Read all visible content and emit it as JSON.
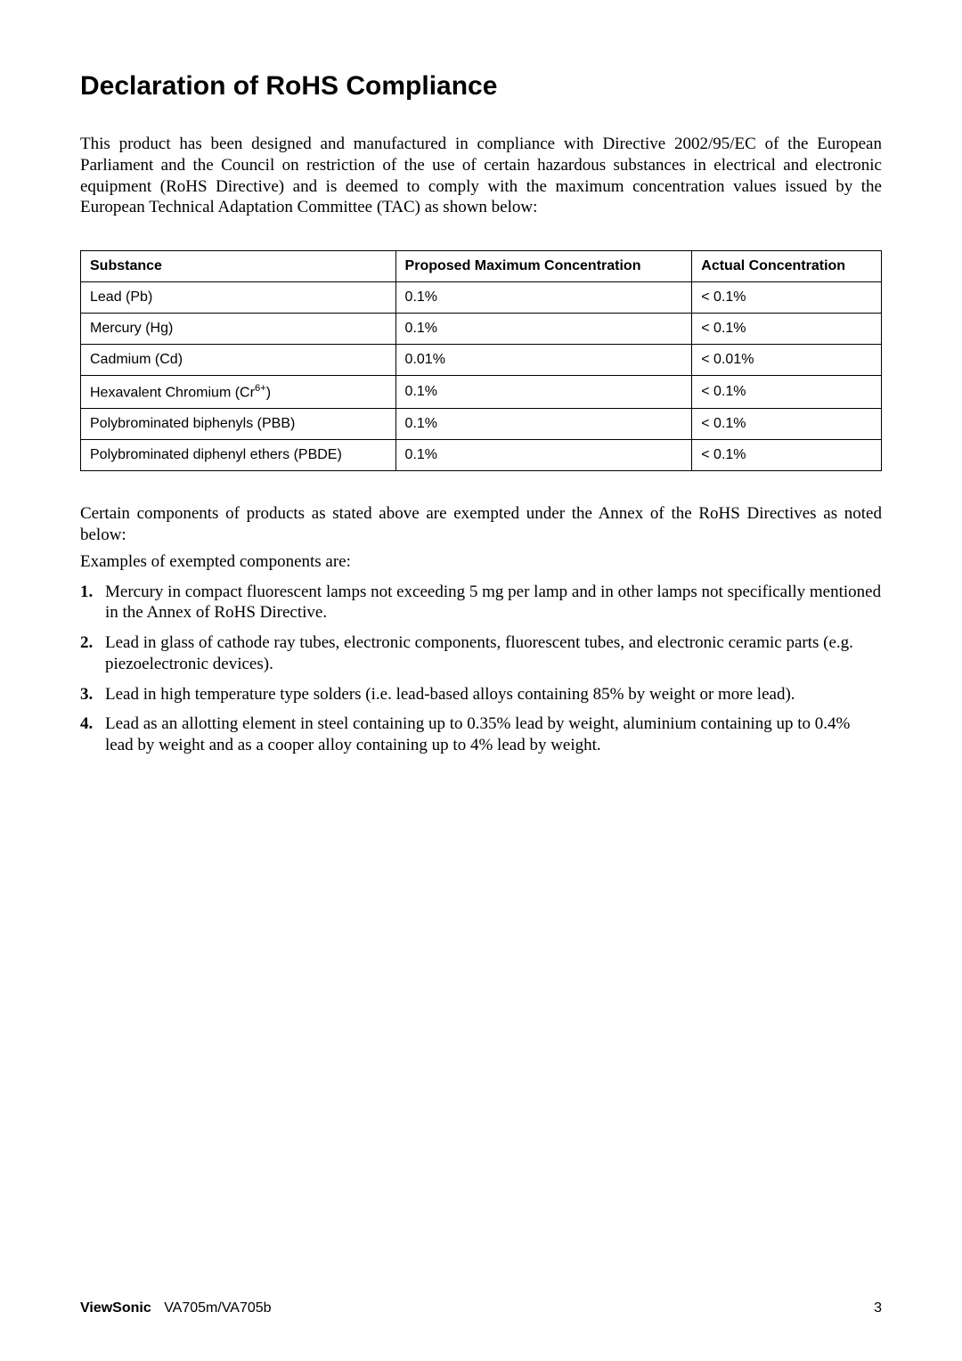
{
  "title": "Declaration of RoHS Compliance",
  "intro": "This product has been designed and manufactured in compliance with Directive 2002/95/EC of the European Parliament and the Council on restriction of the use of certain hazardous substances in electrical and electronic equipment (RoHS Directive) and is deemed to comply with the maximum concentration values issued by the European Technical Adaptation Committee (TAC) as shown below:",
  "table": {
    "headers": {
      "substance": "Substance",
      "proposed": "Proposed Maximum Concentration",
      "actual": "Actual Concentration"
    },
    "rows": [
      {
        "substance": "Lead (Pb)",
        "proposed": "0.1%",
        "actual": "< 0.1%"
      },
      {
        "substance": "Mercury (Hg)",
        "proposed": "0.1%",
        "actual": "< 0.1%"
      },
      {
        "substance": "Cadmium (Cd)",
        "proposed": "0.01%",
        "actual": "< 0.01%"
      },
      {
        "substance_prefix": "Hexavalent Chromium (Cr",
        "substance_sup": "6+",
        "substance_suffix": ")",
        "proposed": "0.1%",
        "actual": "< 0.1%"
      },
      {
        "substance": "Polybrominated biphenyls (PBB)",
        "proposed": "0.1%",
        "actual": "< 0.1%"
      },
      {
        "substance": "Polybrominated diphenyl ethers (PBDE)",
        "proposed": "0.1%",
        "actual": "< 0.1%"
      }
    ]
  },
  "post": "Certain components of products as stated above are exempted under the Annex of the RoHS Directives as noted below:",
  "examples_lead": "Examples of exempted components are:",
  "exempt": [
    "Mercury in compact fluorescent lamps not exceeding 5 mg per lamp and in other lamps not specifically mentioned in the Annex of RoHS Directive.",
    "Lead in glass of cathode ray tubes, electronic components, fluorescent tubes, and electronic ceramic parts (e.g. piezoelectronic devices).",
    "Lead in high temperature type solders (i.e. lead-based alloys containing 85% by weight or more lead).",
    "Lead as an allotting element in steel containing up to 0.35% lead by weight, aluminium containing up to 0.4% lead by weight and as a cooper alloy containing up to 4% lead by weight."
  ],
  "footer": {
    "brand": "ViewSonic",
    "model": "VA705m/VA705b",
    "page": "3"
  }
}
